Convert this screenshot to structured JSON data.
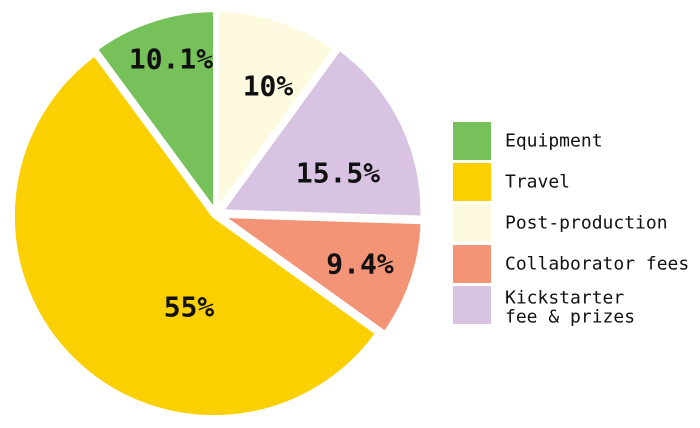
{
  "chart_data": {
    "type": "pie",
    "title": "",
    "slices": [
      {
        "label": "Equipment",
        "value": 10.1,
        "display": "10.1%",
        "color": "#77c15b"
      },
      {
        "label": "Post-production",
        "value": 10,
        "display": "10%",
        "color": "#fefadf"
      },
      {
        "label": "Kickstarter fee & prizes",
        "value": 15.5,
        "display": "15.5%",
        "color": "#d8c4e2"
      },
      {
        "label": "Collaborator fees",
        "value": 9.4,
        "display": "9.4%",
        "color": "#f39476"
      },
      {
        "label": "Travel",
        "value": 55,
        "display": "55%",
        "color": "#fbd000"
      }
    ],
    "legend": {
      "placement": "right",
      "items": [
        {
          "label": "Equipment",
          "color": "#77c15b"
        },
        {
          "label": "Travel",
          "color": "#fbd000"
        },
        {
          "label": "Post-production",
          "color": "#fefadf"
        },
        {
          "label": "Collaborator fees",
          "color": "#f39476"
        },
        {
          "label": "Kickstarter fee & prizes",
          "lines": [
            "Kickstarter",
            "fee & prizes"
          ],
          "color": "#d8c4e2"
        }
      ]
    }
  }
}
